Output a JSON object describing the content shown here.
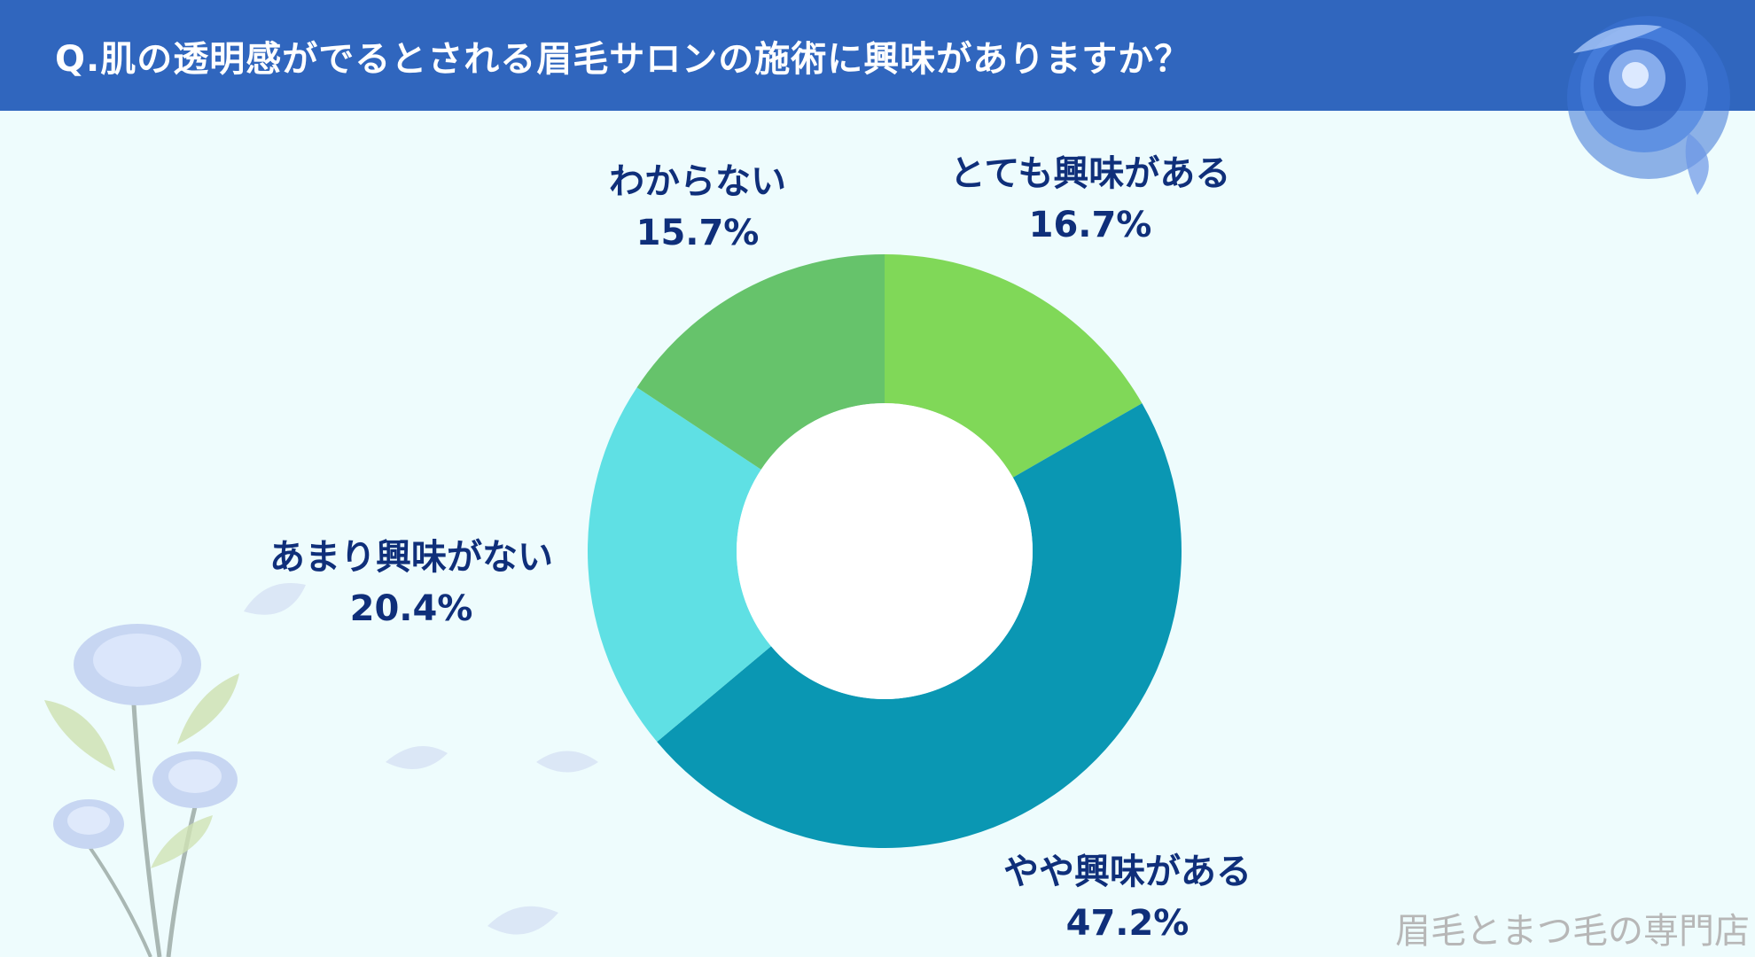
{
  "title": "Q.肌の透明感がでるとされる眉毛サロンの施術に興味がありますか？",
  "watermark": "眉毛とまつ毛の専門店",
  "chart_data": {
    "type": "pie",
    "donut": true,
    "title": "Q.肌の透明感がでるとされる眉毛サロンの施術に興味がありますか？",
    "slices": [
      {
        "label": "とても興味がある",
        "value": 16.7,
        "display": "16.7%",
        "color": "#80d858"
      },
      {
        "label": "やや興味がある",
        "value": 47.2,
        "display": "47.2%",
        "color": "#0a97b3"
      },
      {
        "label": "あまり興味がない",
        "value": 20.4,
        "display": "20.4%",
        "color": "#5fe0e4"
      },
      {
        "label": "わからない",
        "value": 15.7,
        "display": "15.7%",
        "color": "#66c36b"
      }
    ]
  },
  "colors": {
    "header_bg": "#3066be",
    "page_bg": "#eefcfd",
    "label_text": "#0f2f7a"
  },
  "decorations": [
    "blue-rose-icon",
    "rose-bouquet-icon",
    "petal-icon"
  ]
}
